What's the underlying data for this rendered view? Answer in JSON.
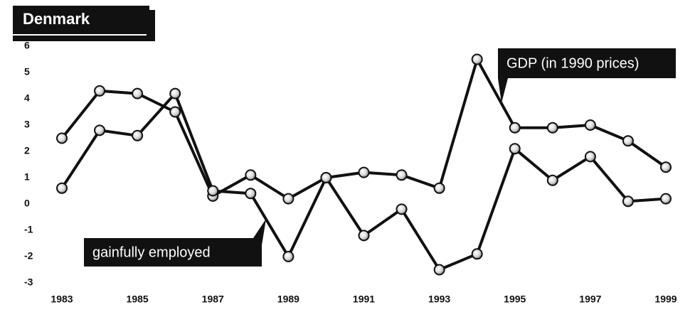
{
  "chart_data": {
    "type": "line",
    "title": "Denmark",
    "x": [
      1983,
      1984,
      1985,
      1986,
      1987,
      1988,
      1989,
      1990,
      1991,
      1992,
      1993,
      1994,
      1995,
      1996,
      1997,
      1998,
      1999
    ],
    "series": [
      {
        "name": "GDP (in 1990 prices)",
        "color": "#111111",
        "values": [
          2.5,
          4.3,
          4.2,
          3.5,
          0.3,
          1.1,
          0.2,
          1.0,
          1.2,
          1.1,
          0.6,
          5.5,
          2.9,
          2.9,
          3.0,
          2.4,
          1.4
        ]
      },
      {
        "name": "gainfully employed",
        "color": "#111111",
        "values": [
          0.6,
          2.8,
          2.6,
          4.2,
          0.5,
          0.4,
          -2.0,
          1.0,
          -1.2,
          -0.2,
          -2.5,
          -1.9,
          2.1,
          0.9,
          1.8,
          0.1,
          0.2
        ]
      }
    ],
    "xlim": [
      1983,
      1999
    ],
    "xticks": [
      1983,
      1985,
      1987,
      1989,
      1991,
      1993,
      1995,
      1997,
      1999
    ],
    "ylim": [
      -3,
      6
    ],
    "yticks": [
      -3,
      -2,
      -1,
      0,
      1,
      2,
      3,
      4,
      5,
      6
    ],
    "grid": false
  }
}
